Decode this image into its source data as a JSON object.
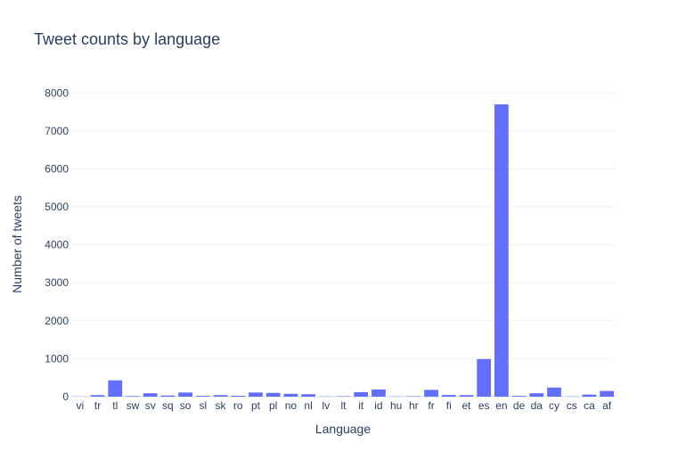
{
  "chart_data": {
    "type": "bar",
    "title": "Tweet counts by language",
    "xlabel": "Language",
    "ylabel": "Number of tweets",
    "ylim": [
      0,
      8500
    ],
    "yticks": [
      0,
      1000,
      2000,
      3000,
      4000,
      5000,
      6000,
      7000,
      8000
    ],
    "grid": true,
    "legend": "none",
    "bar_color": "#636efa",
    "categories": [
      "vi",
      "tr",
      "tl",
      "sw",
      "sv",
      "sq",
      "so",
      "sl",
      "sk",
      "ro",
      "pt",
      "pl",
      "no",
      "nl",
      "lv",
      "lt",
      "it",
      "id",
      "hu",
      "hr",
      "fr",
      "fi",
      "et",
      "es",
      "en",
      "de",
      "da",
      "cy",
      "cs",
      "ca",
      "af"
    ],
    "values": [
      3,
      40,
      430,
      15,
      90,
      30,
      110,
      20,
      40,
      25,
      110,
      100,
      75,
      65,
      5,
      10,
      120,
      190,
      5,
      10,
      180,
      45,
      40,
      990,
      7700,
      20,
      90,
      240,
      5,
      55,
      150
    ]
  }
}
